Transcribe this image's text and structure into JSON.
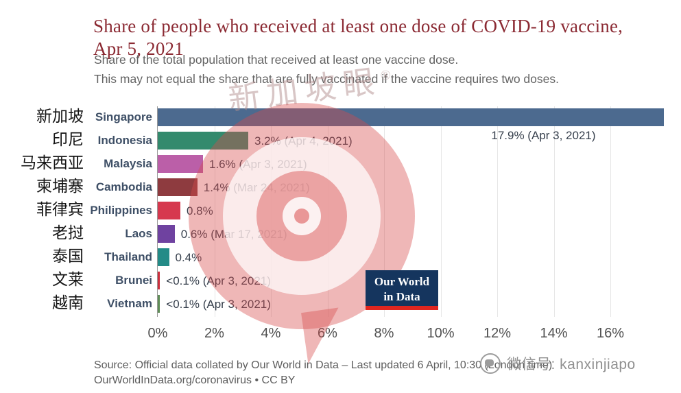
{
  "title": {
    "text": "Share of people who received at least one dose of COVID-19 vaccine, Apr 5, 2021",
    "color": "#8b2a33"
  },
  "subtitle": {
    "line1": "Share of the total population that received at least one vaccine dose.",
    "line2": "This may not equal the share that are fully vaccinated if the vaccine requires two doses."
  },
  "chart_data": {
    "type": "bar",
    "orientation": "horizontal",
    "title": "Share of people who received at least one dose of COVID-19 vaccine, Apr 5, 2021",
    "x_axis": {
      "ticks": [
        "0%",
        "2%",
        "4%",
        "6%",
        "8%",
        "10%",
        "12%",
        "14%",
        "16%"
      ],
      "tick_values": [
        0,
        2,
        4,
        6,
        8,
        10,
        12,
        14,
        16
      ],
      "min": 0,
      "max": 18.1,
      "grid": true
    },
    "rows": [
      {
        "label": "Singapore",
        "label_zh": "新加坡",
        "value": 17.9,
        "value_label": "17.9% (Apr 3, 2021)",
        "color": "#4c6a8f"
      },
      {
        "label": "Indonesia",
        "label_zh": "印尼",
        "value": 3.2,
        "value_label": "3.2% (Apr 4, 2021)",
        "color": "#338a6d"
      },
      {
        "label": "Malaysia",
        "label_zh": "马来西亚",
        "value": 1.6,
        "value_label": "1.6% (Apr 3, 2021)",
        "color": "#bb5fa8"
      },
      {
        "label": "Cambodia",
        "label_zh": "柬埔寨",
        "value": 1.4,
        "value_label": "1.4% (Mar 24, 2021)",
        "color": "#8e3b3f"
      },
      {
        "label": "Philippines",
        "label_zh": "菲律宾",
        "value": 0.8,
        "value_label": "0.8%",
        "color": "#d6384e"
      },
      {
        "label": "Laos",
        "label_zh": "老挝",
        "value": 0.6,
        "value_label": "0.6% (Mar 17, 2021)",
        "color": "#6f42a0"
      },
      {
        "label": "Thailand",
        "label_zh": "泰国",
        "value": 0.4,
        "value_label": "0.4%",
        "color": "#238b87"
      },
      {
        "label": "Brunei",
        "label_zh": "文莱",
        "value": 0.08,
        "value_label": "<0.1% (Apr 3, 2021)",
        "color": "#cc2f3d"
      },
      {
        "label": "Vietnam",
        "label_zh": "越南",
        "value": 0.08,
        "value_label": "<0.1% (Apr 3, 2021)",
        "color": "#5f8d57"
      }
    ]
  },
  "owid_logo": {
    "line1": "Our World",
    "line2": "in Data",
    "bg": "#15355e",
    "accent": "#e0261f"
  },
  "watermark": {
    "text": "新加坡眼",
    "registered": "®"
  },
  "footer": {
    "line1": "Source: Official data collated by Our World in Data – Last updated 6 April, 10:30 (London time)",
    "line2": "OurWorldInData.org/coronavirus • CC BY"
  },
  "wechat": {
    "label": "微信号: kanxinjiapo"
  }
}
